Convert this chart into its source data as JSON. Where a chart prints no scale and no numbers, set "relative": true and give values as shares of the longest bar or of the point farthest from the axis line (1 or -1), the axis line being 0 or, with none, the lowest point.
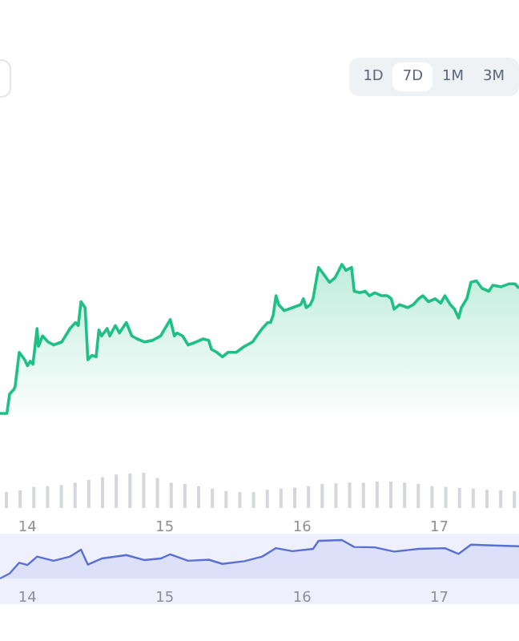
{
  "chart_data": [
    {
      "type": "area",
      "relative": true,
      "tick_labels": false,
      "annotations": [
        "1D",
        "7D",
        "1M",
        "3M"
      ],
      "xlim": [
        13.8,
        17.58
      ],
      "xticks": [
        14,
        15,
        16,
        17
      ],
      "series": [
        {
          "color": "#1fbf85",
          "x": [
            13.8,
            13.85,
            13.87,
            13.9,
            13.91,
            13.94,
            13.98,
            14.0,
            14.02,
            14.04,
            14.07,
            14.08,
            14.11,
            14.15,
            14.19,
            14.25,
            14.31,
            14.35,
            14.37,
            14.39,
            14.42,
            14.44,
            14.47,
            14.5,
            14.52,
            14.54,
            14.58,
            14.6,
            14.64,
            14.67,
            14.72,
            14.76,
            14.8,
            14.85,
            14.91,
            14.97,
            15.04,
            15.07,
            15.09,
            15.13,
            15.17,
            15.23,
            15.28,
            15.32,
            15.34,
            15.38,
            15.42,
            15.46,
            15.52,
            15.58,
            15.64,
            15.67,
            15.71,
            15.75,
            15.77,
            15.79,
            15.81,
            15.83,
            15.87,
            15.93,
            15.99,
            16.01,
            16.03,
            16.06,
            16.08,
            16.12,
            16.16,
            16.2,
            16.24,
            16.29,
            16.32,
            16.36,
            16.38,
            16.42,
            16.46,
            16.49,
            16.53,
            16.58,
            16.62,
            16.65,
            16.67,
            16.71,
            16.77,
            16.81,
            16.85,
            16.88,
            16.92,
            16.97,
            17.01,
            17.04,
            17.08,
            17.11,
            17.14,
            17.16,
            17.2,
            17.23,
            17.27,
            17.31,
            17.36,
            17.39,
            17.45,
            17.51,
            17.55,
            17.58
          ],
          "values": [
            0,
            0,
            0.13,
            0.16,
            0.18,
            0.41,
            0.36,
            0.32,
            0.35,
            0.33,
            0.57,
            0.45,
            0.52,
            0.48,
            0.46,
            0.48,
            0.57,
            0.61,
            0.59,
            0.75,
            0.71,
            0.36,
            0.39,
            0.38,
            0.56,
            0.52,
            0.57,
            0.52,
            0.59,
            0.54,
            0.61,
            0.52,
            0.5,
            0.48,
            0.49,
            0.52,
            0.63,
            0.52,
            0.54,
            0.52,
            0.46,
            0.48,
            0.5,
            0.49,
            0.43,
            0.41,
            0.38,
            0.41,
            0.41,
            0.45,
            0.48,
            0.52,
            0.57,
            0.61,
            0.61,
            0.66,
            0.79,
            0.73,
            0.69,
            0.71,
            0.73,
            0.77,
            0.71,
            0.73,
            0.77,
            0.98,
            0.93,
            0.88,
            0.91,
            1,
            0.96,
            0.98,
            0.82,
            0.81,
            0.82,
            0.79,
            0.81,
            0.79,
            0.79,
            0.77,
            0.7,
            0.73,
            0.71,
            0.73,
            0.77,
            0.79,
            0.75,
            0.77,
            0.74,
            0.79,
            0.73,
            0.7,
            0.64,
            0.71,
            0.77,
            0.88,
            0.89,
            0.84,
            0.82,
            0.86,
            0.85,
            0.87,
            0.87,
            0.84
          ]
        }
      ]
    },
    {
      "type": "bar",
      "relative": true,
      "xlim": [
        13.8,
        17.58
      ],
      "xticks": [
        14,
        15,
        16,
        17
      ],
      "series": [
        {
          "color": "#d3d6dc",
          "x": [
            13.85,
            13.95,
            14.05,
            14.15,
            14.25,
            14.35,
            14.45,
            14.55,
            14.65,
            14.75,
            14.85,
            14.95,
            15.05,
            15.15,
            15.25,
            15.35,
            15.45,
            15.55,
            15.65,
            15.75,
            15.85,
            15.95,
            16.05,
            16.15,
            16.25,
            16.35,
            16.45,
            16.55,
            16.65,
            16.75,
            16.85,
            16.95,
            17.05,
            17.15,
            17.25,
            17.35,
            17.45,
            17.55
          ],
          "values": [
            0.45,
            0.5,
            0.6,
            0.62,
            0.65,
            0.72,
            0.8,
            0.88,
            0.95,
            0.98,
            1,
            0.85,
            0.72,
            0.68,
            0.62,
            0.55,
            0.48,
            0.45,
            0.45,
            0.52,
            0.55,
            0.58,
            0.62,
            0.68,
            0.7,
            0.72,
            0.72,
            0.75,
            0.75,
            0.72,
            0.68,
            0.62,
            0.6,
            0.57,
            0.55,
            0.52,
            0.5,
            0.48
          ]
        }
      ]
    },
    {
      "type": "area",
      "relative": true,
      "xlim": [
        13.8,
        17.58
      ],
      "xticks": [
        14,
        15,
        16,
        17
      ],
      "series": [
        {
          "color": "#5a6fd6",
          "x": [
            13.8,
            13.87,
            13.94,
            14.0,
            14.07,
            14.19,
            14.31,
            14.39,
            14.44,
            14.54,
            14.72,
            14.85,
            14.97,
            15.04,
            15.17,
            15.32,
            15.42,
            15.58,
            15.71,
            15.81,
            15.93,
            16.08,
            16.12,
            16.29,
            16.38,
            16.53,
            16.67,
            16.85,
            17.04,
            17.14,
            17.23,
            17.39,
            17.58
          ],
          "values": [
            0,
            0.13,
            0.41,
            0.35,
            0.57,
            0.46,
            0.57,
            0.75,
            0.36,
            0.52,
            0.61,
            0.48,
            0.52,
            0.63,
            0.46,
            0.49,
            0.38,
            0.45,
            0.57,
            0.79,
            0.71,
            0.77,
            0.98,
            1,
            0.82,
            0.81,
            0.7,
            0.77,
            0.79,
            0.64,
            0.88,
            0.86,
            0.84
          ]
        }
      ]
    }
  ]
}
